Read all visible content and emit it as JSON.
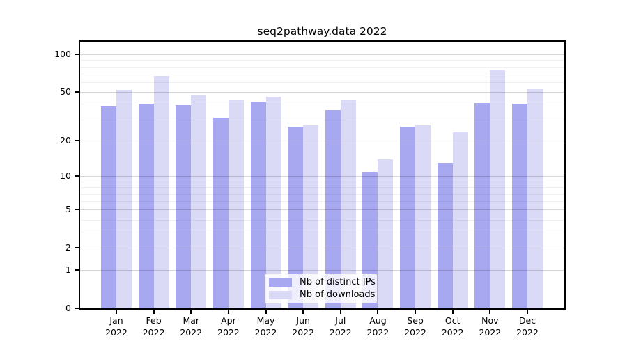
{
  "chart_data": {
    "type": "bar",
    "title": "seq2pathway.data 2022",
    "categories": [
      "Jan 2022",
      "Feb 2022",
      "Mar 2022",
      "Apr 2022",
      "May 2022",
      "Jun 2022",
      "Jul 2022",
      "Aug 2022",
      "Sep 2022",
      "Oct 2022",
      "Nov 2022",
      "Dec 2022"
    ],
    "series": [
      {
        "name": "Nb of distinct IPs",
        "color": "#a8a8f0",
        "values": [
          38,
          40,
          39,
          31,
          42,
          26,
          36,
          11,
          26,
          13,
          41,
          40
        ]
      },
      {
        "name": "Nb of downloads",
        "color": "#dadaf6",
        "values": [
          52,
          67,
          47,
          43,
          46,
          27,
          43,
          14,
          27,
          24,
          76,
          53
        ]
      }
    ],
    "xlabel": "",
    "ylabel": "",
    "yscale": "log1p",
    "y_axis": {
      "major_ticks": [
        0,
        1,
        2,
        5,
        10,
        20,
        50,
        100
      ],
      "minor_ticks": [
        3,
        4,
        6,
        7,
        8,
        9,
        30,
        40,
        60,
        70,
        80,
        90
      ],
      "range_top": 126
    },
    "grid": "horizontal",
    "legend_position": "bottom-center"
  },
  "colors": {
    "bar_distinct_ips": "#a8a8f0",
    "bar_downloads": "#dadaf6",
    "grid_major": "rgba(0,0,0,0.16)",
    "grid_minor": "rgba(0,0,0,0.055)",
    "axis_border": "#000000",
    "legend_border": "#b3b3b3",
    "background": "#ffffff"
  }
}
